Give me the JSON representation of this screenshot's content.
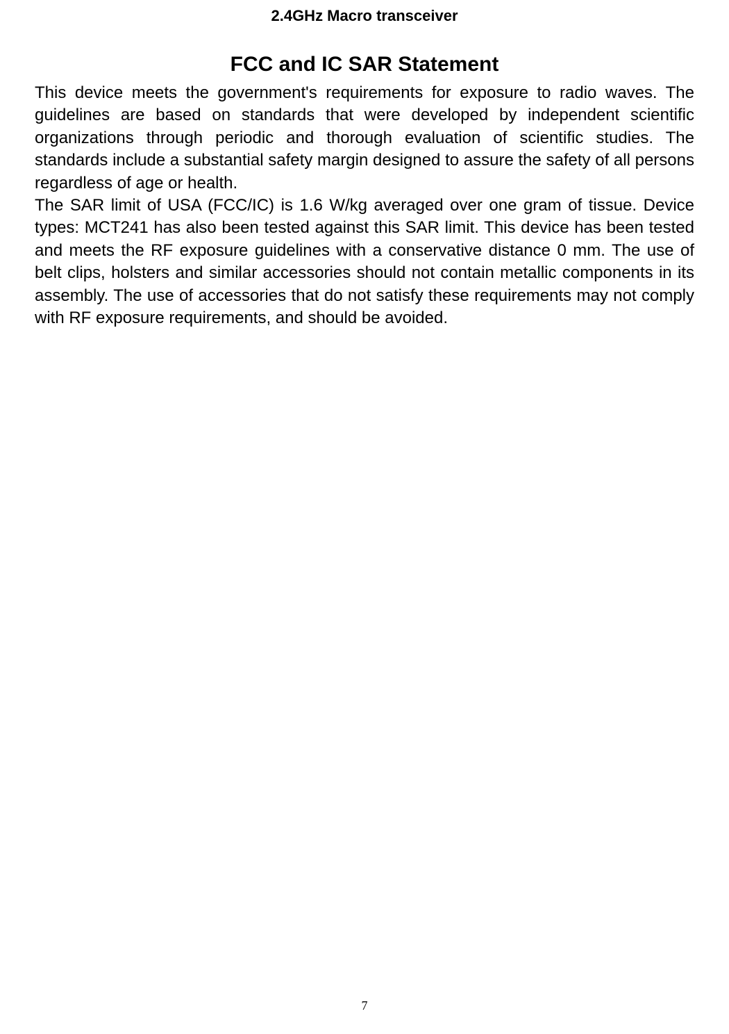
{
  "header": {
    "title": "2.4GHz Macro transceiver"
  },
  "content": {
    "main_title": "FCC and IC SAR Statement",
    "paragraph1": "This device meets the government's requirements for exposure to radio waves. The guidelines are based on standards that were developed by independent scientific organizations through periodic and thorough evaluation of scientific studies. The standards include a substantial safety margin designed to assure the safety of all persons regardless of age or health.",
    "paragraph2": "The SAR limit of USA (FCC/IC) is 1.6 W/kg averaged over one gram of tissue. Device types: MCT241 has also been tested against this SAR limit. This device has been tested and meets the RF exposure guidelines with a conservative distance 0 mm. The use of belt clips, holsters and similar accessories should not contain metallic components in its assembly. The use of accessories that do not satisfy these requirements may not comply with RF exposure requirements, and should be avoided."
  },
  "footer": {
    "page_number": "7"
  }
}
